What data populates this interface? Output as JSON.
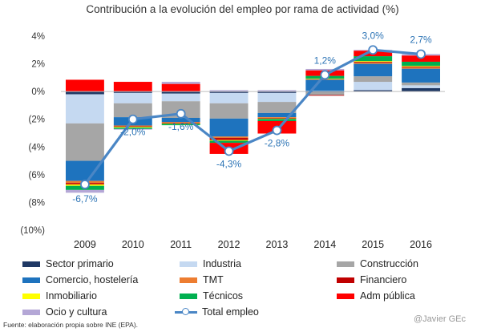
{
  "chart_data": {
    "type": "bar",
    "title": "Contribución a la evolución del empleo por rama de actividad (%)",
    "categories": [
      "2009",
      "2010",
      "2011",
      "2012",
      "2013",
      "2014",
      "2015",
      "2016"
    ],
    "ylim": [
      -10,
      4
    ],
    "yticks": [
      4,
      2,
      0,
      -2,
      -4,
      -6,
      -8,
      -10
    ],
    "ytick_labels": [
      "4%",
      "2%",
      "0%",
      "(2%",
      "(4%",
      "(6%",
      "(8%",
      "(10%)"
    ],
    "series": [
      {
        "name": "Sector primario",
        "color": "#1f3864",
        "values": [
          -0.2,
          -0.1,
          -0.15,
          -0.1,
          -0.1,
          -0.05,
          0.1,
          0.25
        ]
      },
      {
        "name": "Industria",
        "color": "#c5d9f1",
        "values": [
          -2.1,
          -0.75,
          -0.55,
          -0.75,
          -0.65,
          0.05,
          0.6,
          0.2
        ]
      },
      {
        "name": "Construcción",
        "color": "#a6a6a6",
        "values": [
          -2.7,
          -1.0,
          -1.2,
          -1.1,
          -0.8,
          -0.2,
          0.4,
          0.2
        ]
      },
      {
        "name": "Comercio, hostelería",
        "color": "#1e73be",
        "values": [
          -1.45,
          -0.6,
          -0.3,
          -1.3,
          -0.3,
          0.8,
          0.9,
          1.0
        ]
      },
      {
        "name": "TMT",
        "color": "#ed7d31",
        "values": [
          -0.15,
          -0.05,
          -0.05,
          -0.1,
          -0.05,
          0.05,
          0.1,
          0.1
        ]
      },
      {
        "name": "Financiero",
        "color": "#c00000",
        "values": [
          -0.1,
          -0.05,
          -0.05,
          -0.15,
          -0.05,
          -0.05,
          0.05,
          0.05
        ]
      },
      {
        "name": "Inmobiliario",
        "color": "#ffff00",
        "values": [
          -0.1,
          -0.05,
          -0.03,
          -0.05,
          -0.03,
          0.03,
          0.05,
          0.05
        ]
      },
      {
        "name": "Técnicos",
        "color": "#00b050",
        "values": [
          -0.3,
          -0.1,
          -0.1,
          -0.15,
          -0.15,
          0.2,
          0.35,
          0.3
        ]
      },
      {
        "name": "Adm pública",
        "color": "#ff0000",
        "values": [
          0.85,
          0.7,
          0.55,
          -0.8,
          -0.9,
          0.4,
          0.4,
          0.45
        ]
      },
      {
        "name": "Ocio y cultura",
        "color": "#b4a7d6",
        "values": [
          -0.2,
          -0.05,
          0.15,
          0.1,
          0.1,
          0.1,
          0.05,
          0.1
        ]
      }
    ],
    "line": {
      "name": "Total empleo",
      "color": "#4a86c5",
      "values": [
        -6.7,
        -2.0,
        -1.6,
        -4.3,
        -2.8,
        1.2,
        3.0,
        2.7
      ],
      "labels": [
        "-6,7%",
        "-2,0%",
        "-1,6%",
        "-4,3%",
        "-2,8%",
        "1,2%",
        "3,0%",
        "2,7%"
      ]
    }
  },
  "legend": {
    "sector_primario": "Sector primario",
    "industria": "Industria",
    "construccion": "Construcción",
    "comercio": "Comercio, hostelería",
    "tmt": "TMT",
    "financiero": "Financiero",
    "inmobiliario": "Inmobiliario",
    "tecnicos": "Técnicos",
    "adm_publica": "Adm pública",
    "ocio": "Ocio y cultura",
    "total": "Total empleo"
  },
  "colors": {
    "sector_primario": "#1f3864",
    "industria": "#c5d9f1",
    "construccion": "#a6a6a6",
    "comercio": "#1e73be",
    "tmt": "#ed7d31",
    "financiero": "#c00000",
    "inmobiliario": "#ffff00",
    "tecnicos": "#00b050",
    "adm_publica": "#ff0000",
    "ocio": "#b4a7d6"
  },
  "source": "Fuente: elaboración propia sobre INE (EPA).",
  "credit": "@Javier GEc"
}
